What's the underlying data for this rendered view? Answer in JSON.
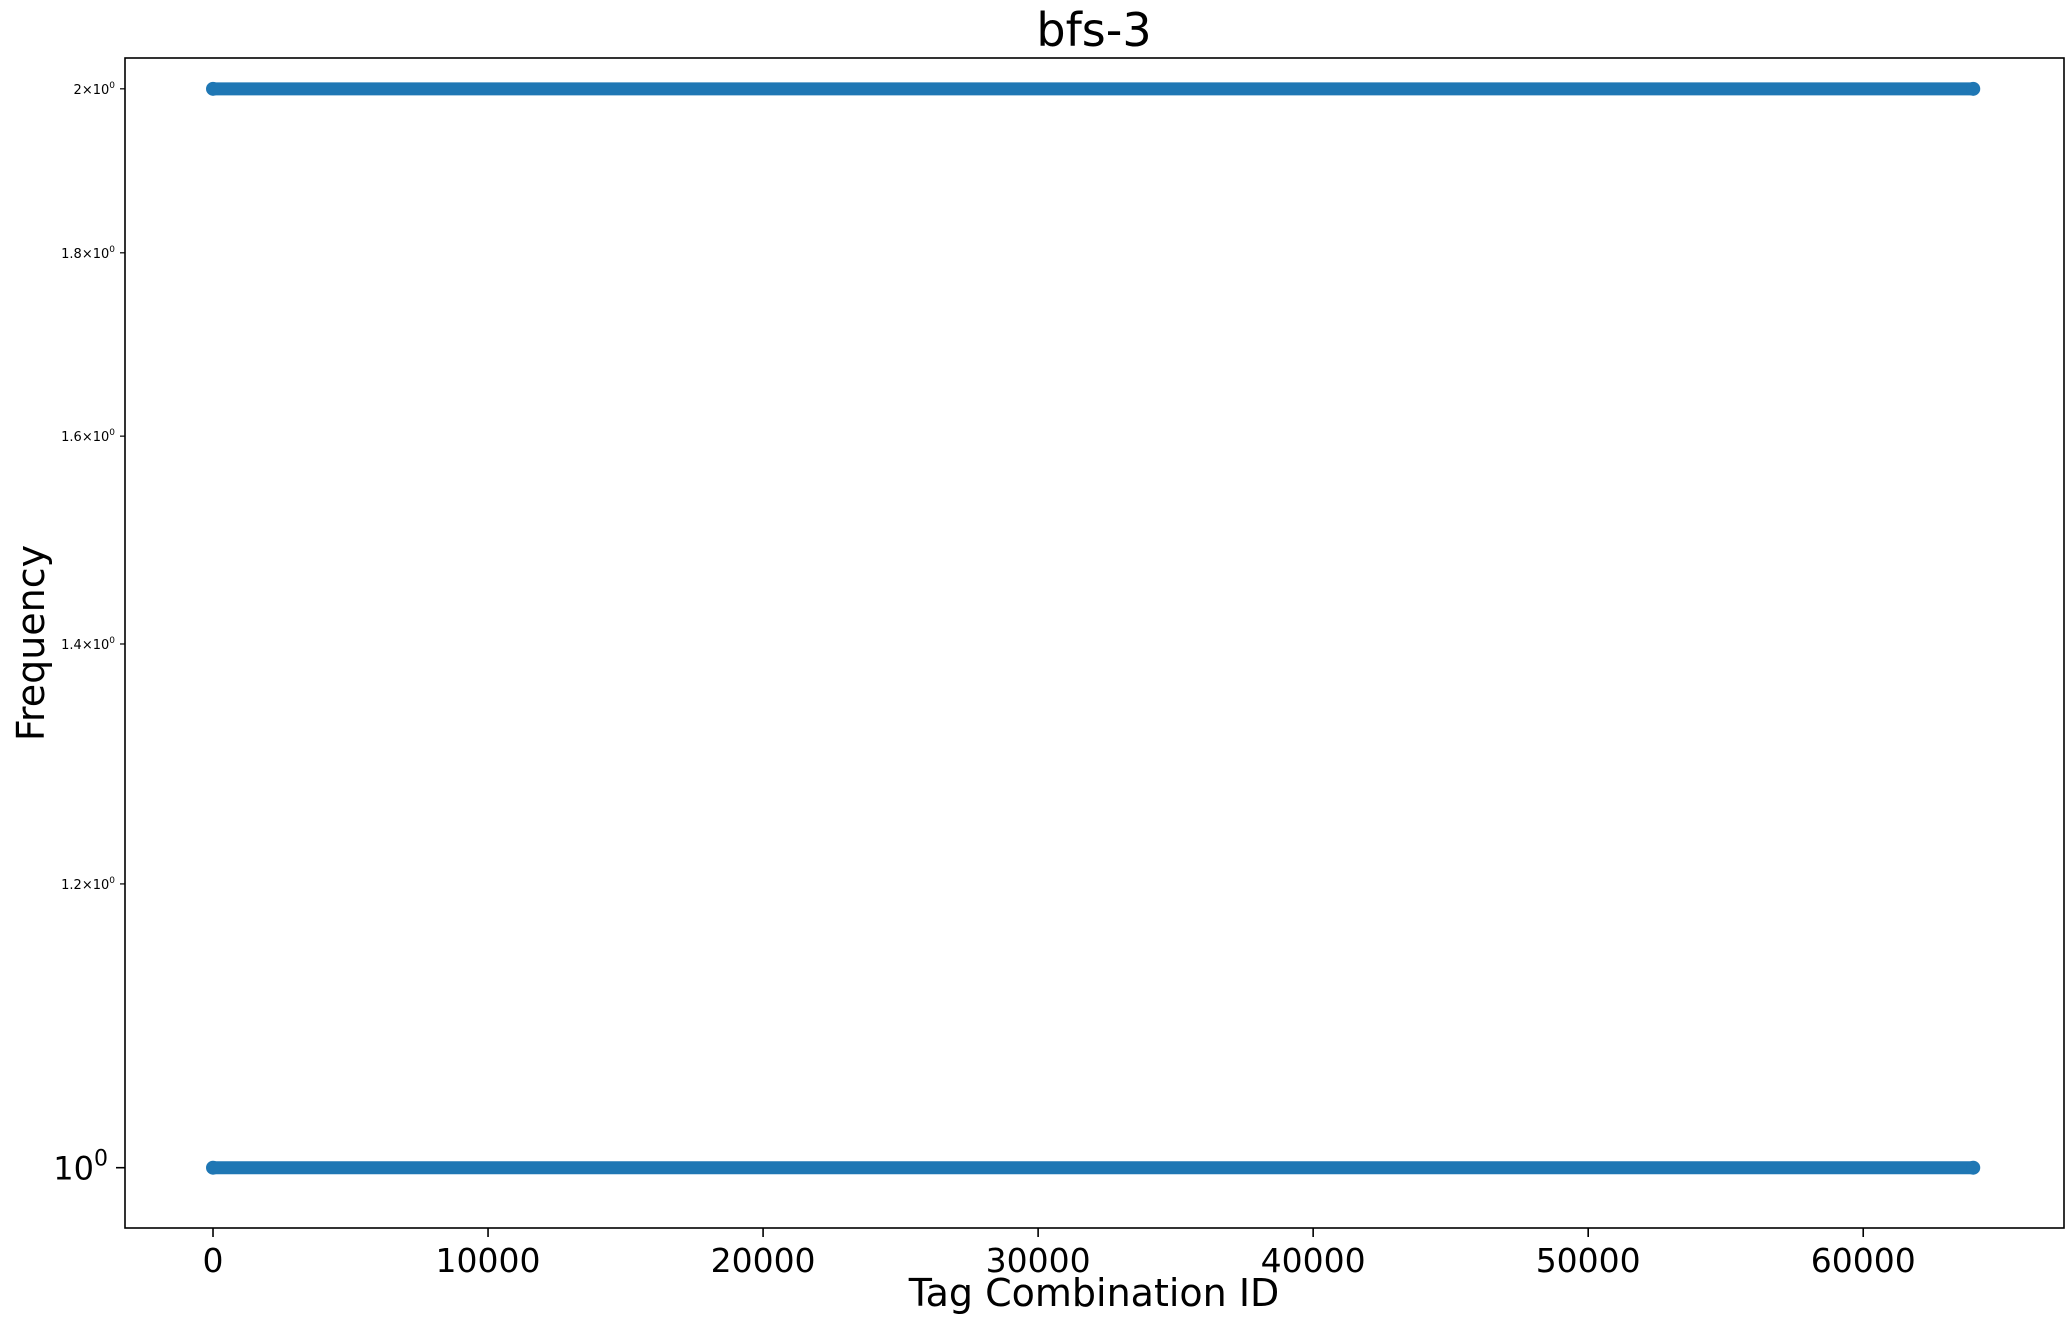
{
  "chart_data": {
    "type": "scatter",
    "title": "bfs-3",
    "xlabel": "Tag Combination ID",
    "ylabel": "Frequency",
    "x_scale": "linear",
    "y_scale": "log",
    "xlim": [
      -3200,
      67300
    ],
    "ylim": [
      0.962,
      2.04
    ],
    "x_ticks": [
      0,
      10000,
      20000,
      30000,
      40000,
      50000,
      60000
    ],
    "x_tick_labels": [
      "0",
      "10000",
      "20000",
      "30000",
      "40000",
      "50000",
      "60000"
    ],
    "y_ticks_major": [
      {
        "value": 1,
        "base": "10",
        "exp": "0"
      }
    ],
    "y_ticks_minor": [
      {
        "value": 1.2,
        "mant": "1.2",
        "base": "10",
        "exp": "0"
      },
      {
        "value": 1.4,
        "mant": "1.4",
        "base": "10",
        "exp": "0"
      },
      {
        "value": 1.6,
        "mant": "1.6",
        "base": "10",
        "exp": "0"
      },
      {
        "value": 1.8,
        "mant": "1.8",
        "base": "10",
        "exp": "0"
      },
      {
        "value": 2,
        "mant": "2",
        "base": "10",
        "exp": "0"
      }
    ],
    "series": [
      {
        "color": "#1f77b4",
        "x_range": [
          0,
          64000
        ],
        "y": 2
      },
      {
        "color": "#1f77b4",
        "x_range": [
          0,
          64000
        ],
        "y": 1
      }
    ],
    "grid": false,
    "legend": "none"
  }
}
